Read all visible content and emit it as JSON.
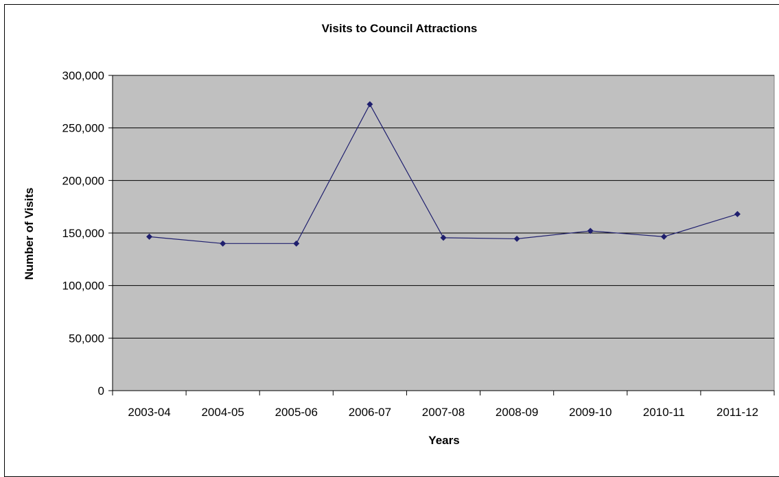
{
  "chart_data": {
    "type": "line",
    "title": "Visits to Council Attractions",
    "xlabel": "Years",
    "ylabel": "Number of Visits",
    "categories": [
      "2003-04",
      "2004-05",
      "2005-06",
      "2006-07",
      "2007-08",
      "2008-09",
      "2009-10",
      "2010-11",
      "2011-12"
    ],
    "series": [
      {
        "values": [
          146500,
          140000,
          140000,
          272500,
          145500,
          144500,
          152000,
          146500,
          168000
        ]
      }
    ],
    "ylim": [
      0,
      300000
    ],
    "yticks": [
      0,
      50000,
      100000,
      150000,
      200000,
      250000,
      300000
    ],
    "ytick_labels": [
      "0",
      "50,000",
      "100,000",
      "150,000",
      "200,000",
      "250,000",
      "300,000"
    ],
    "grid": true,
    "legend": "none",
    "colors": {
      "line": "#1f1f6e",
      "marker": "#1f1f6e",
      "plot_background": "#c0c0c0",
      "gridline": "#000000"
    }
  }
}
